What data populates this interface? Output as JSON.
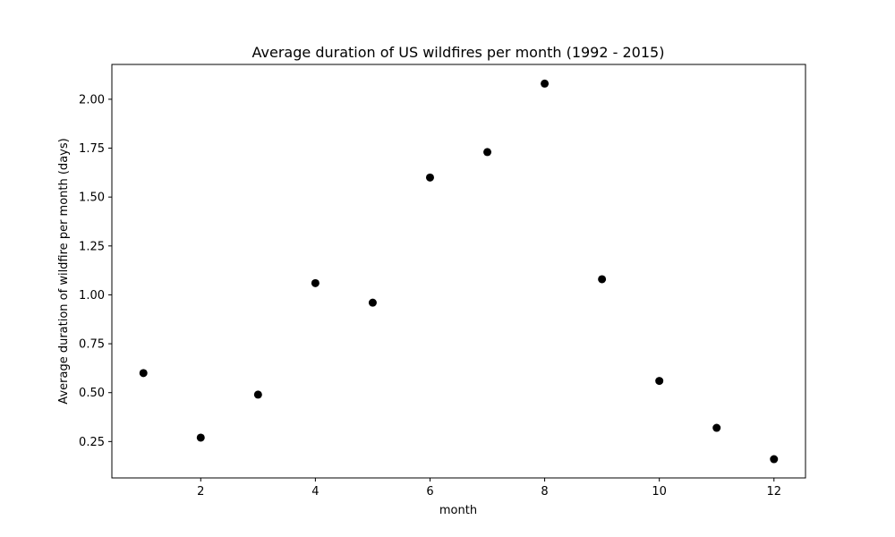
{
  "chart_data": {
    "type": "scatter",
    "title": "Average duration of US wildfires per month (1992 - 2015)",
    "xlabel": "month",
    "ylabel": "Average duration of wildfire per month (days)",
    "x": [
      1,
      2,
      3,
      4,
      5,
      6,
      7,
      8,
      9,
      10,
      11,
      12
    ],
    "y": [
      0.6,
      0.27,
      0.49,
      1.06,
      0.96,
      1.6,
      1.73,
      2.08,
      1.08,
      0.56,
      0.32,
      0.16
    ],
    "xlim": [
      0.45,
      12.55
    ],
    "ylim": [
      0.064,
      2.178
    ],
    "xticks": [
      2,
      4,
      6,
      8,
      10,
      12
    ],
    "xtick_labels": [
      "2",
      "4",
      "6",
      "8",
      "10",
      "12"
    ],
    "yticks": [
      0.25,
      0.5,
      0.75,
      1.0,
      1.25,
      1.5,
      1.75,
      2.0
    ],
    "ytick_labels": [
      "0.25",
      "0.50",
      "0.75",
      "1.00",
      "1.25",
      "1.50",
      "1.75",
      "2.00"
    ],
    "marker_color": "#000000",
    "grid": false,
    "legend": "none"
  }
}
